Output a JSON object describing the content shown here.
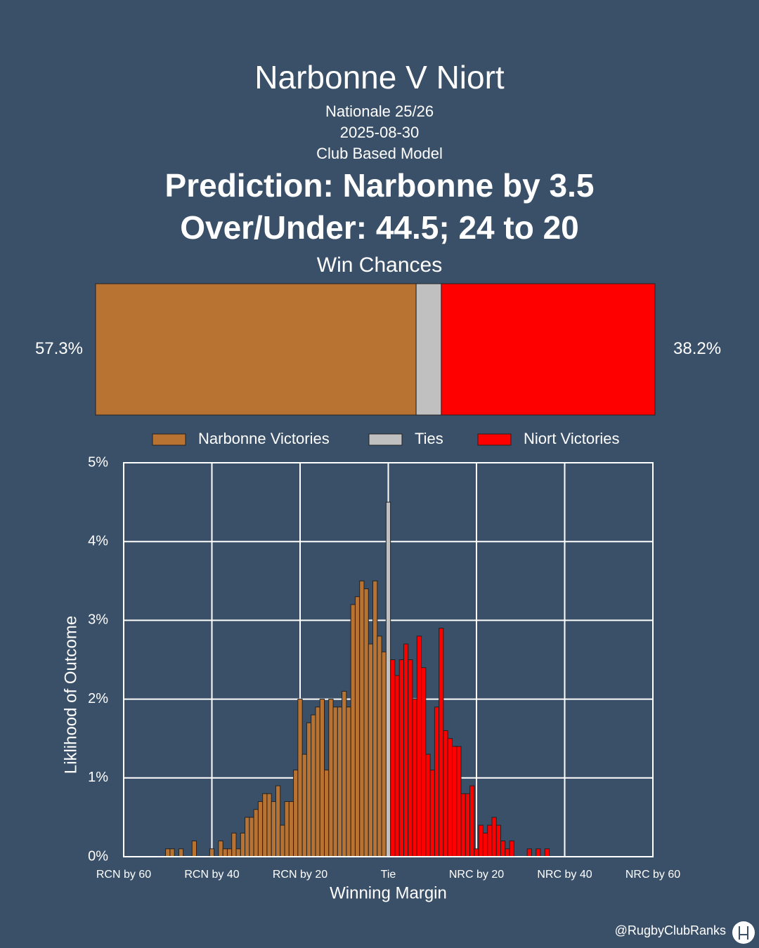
{
  "header": {
    "title": "Narbonne V Niort",
    "subtitles": [
      "Nationale 25/26",
      "2025-08-30",
      "Club Based Model"
    ],
    "prediction": "Prediction: Narbonne by 3.5",
    "over_under": "Over/Under: 44.5; 24 to 20"
  },
  "footer": {
    "credit": "@RugbyClubRanks"
  },
  "chart_data": [
    {
      "type": "stacked-bar",
      "title": "Win Chances",
      "xlim": [
        0,
        100
      ],
      "legend": "bottom",
      "series": [
        {
          "name": "Narbonne Victories",
          "color": "#b87333",
          "values": [
            57.3
          ],
          "value_labels": [
            "57.3%"
          ]
        },
        {
          "name": "Ties",
          "color": "#c0c0c0",
          "values": [
            4.5
          ]
        },
        {
          "name": "Niort Victories",
          "color": "#ff0000",
          "values": [
            38.2
          ],
          "value_labels": [
            "38.2%"
          ]
        }
      ]
    },
    {
      "type": "bar",
      "xlabel": "Winning Margin",
      "ylabel": "Liklihood of Outcome",
      "grid": true,
      "xlim": [
        -60,
        60
      ],
      "xticks": [
        {
          "value": -60,
          "label": "RCN by 60"
        },
        {
          "value": -40,
          "label": "RCN by 40"
        },
        {
          "value": -20,
          "label": "RCN by 20"
        },
        {
          "value": 0,
          "label": "Tie"
        },
        {
          "value": 20,
          "label": "NRC by 20"
        },
        {
          "value": 40,
          "label": "NRC by 40"
        },
        {
          "value": 60,
          "label": "NRC by 60"
        }
      ],
      "ylim": [
        0,
        5
      ],
      "yticks": [
        {
          "value": 0,
          "label": "0%"
        },
        {
          "value": 1,
          "label": "1%"
        },
        {
          "value": 2,
          "label": "2%"
        },
        {
          "value": 3,
          "label": "3%"
        },
        {
          "value": 4,
          "label": "4%"
        },
        {
          "value": 5,
          "label": "5%"
        }
      ],
      "series": [
        {
          "name": "Narbonne Victories",
          "color": "#b87333",
          "x": [
            -50,
            -49,
            -47,
            -44,
            -40,
            -38,
            -37,
            -36,
            -35,
            -34,
            -33,
            -32,
            -31,
            -30,
            -29,
            -28,
            -27,
            -26,
            -25,
            -24,
            -23,
            -22,
            -21,
            -20,
            -19,
            -18,
            -17,
            -16,
            -15,
            -14,
            -13,
            -12,
            -11,
            -10,
            -9,
            -8,
            -7,
            -6,
            -5,
            -4,
            -3,
            -2,
            -1
          ],
          "values": [
            0.1,
            0.1,
            0.1,
            0.2,
            0.1,
            0.2,
            0.1,
            0.1,
            0.3,
            0.1,
            0.3,
            0.5,
            0.5,
            0.6,
            0.7,
            0.8,
            0.8,
            0.7,
            0.9,
            0.4,
            0.7,
            0.7,
            1.1,
            2.0,
            1.3,
            1.7,
            1.8,
            1.9,
            2.0,
            1.1,
            2.0,
            1.9,
            1.9,
            2.1,
            1.9,
            3.2,
            3.3,
            3.5,
            3.4,
            2.7,
            3.5,
            2.8,
            2.6
          ]
        },
        {
          "name": "Ties",
          "color": "#c0c0c0",
          "x": [
            0
          ],
          "values": [
            4.5
          ]
        },
        {
          "name": "Niort Victories",
          "color": "#ff0000",
          "x": [
            1,
            2,
            3,
            4,
            5,
            6,
            7,
            8,
            9,
            10,
            11,
            12,
            13,
            14,
            15,
            16,
            17,
            18,
            19,
            20,
            21,
            22,
            23,
            24,
            25,
            26,
            27,
            28,
            32,
            34,
            36
          ],
          "values": [
            2.5,
            2.3,
            2.5,
            2.7,
            2.5,
            2.0,
            2.8,
            2.4,
            1.3,
            1.1,
            1.9,
            2.9,
            1.6,
            1.5,
            1.4,
            1.4,
            0.8,
            0.8,
            0.9,
            0.1,
            0.4,
            0.3,
            0.4,
            0.5,
            0.4,
            0.2,
            0.1,
            0.2,
            0.1,
            0.1,
            0.1
          ]
        }
      ]
    }
  ]
}
